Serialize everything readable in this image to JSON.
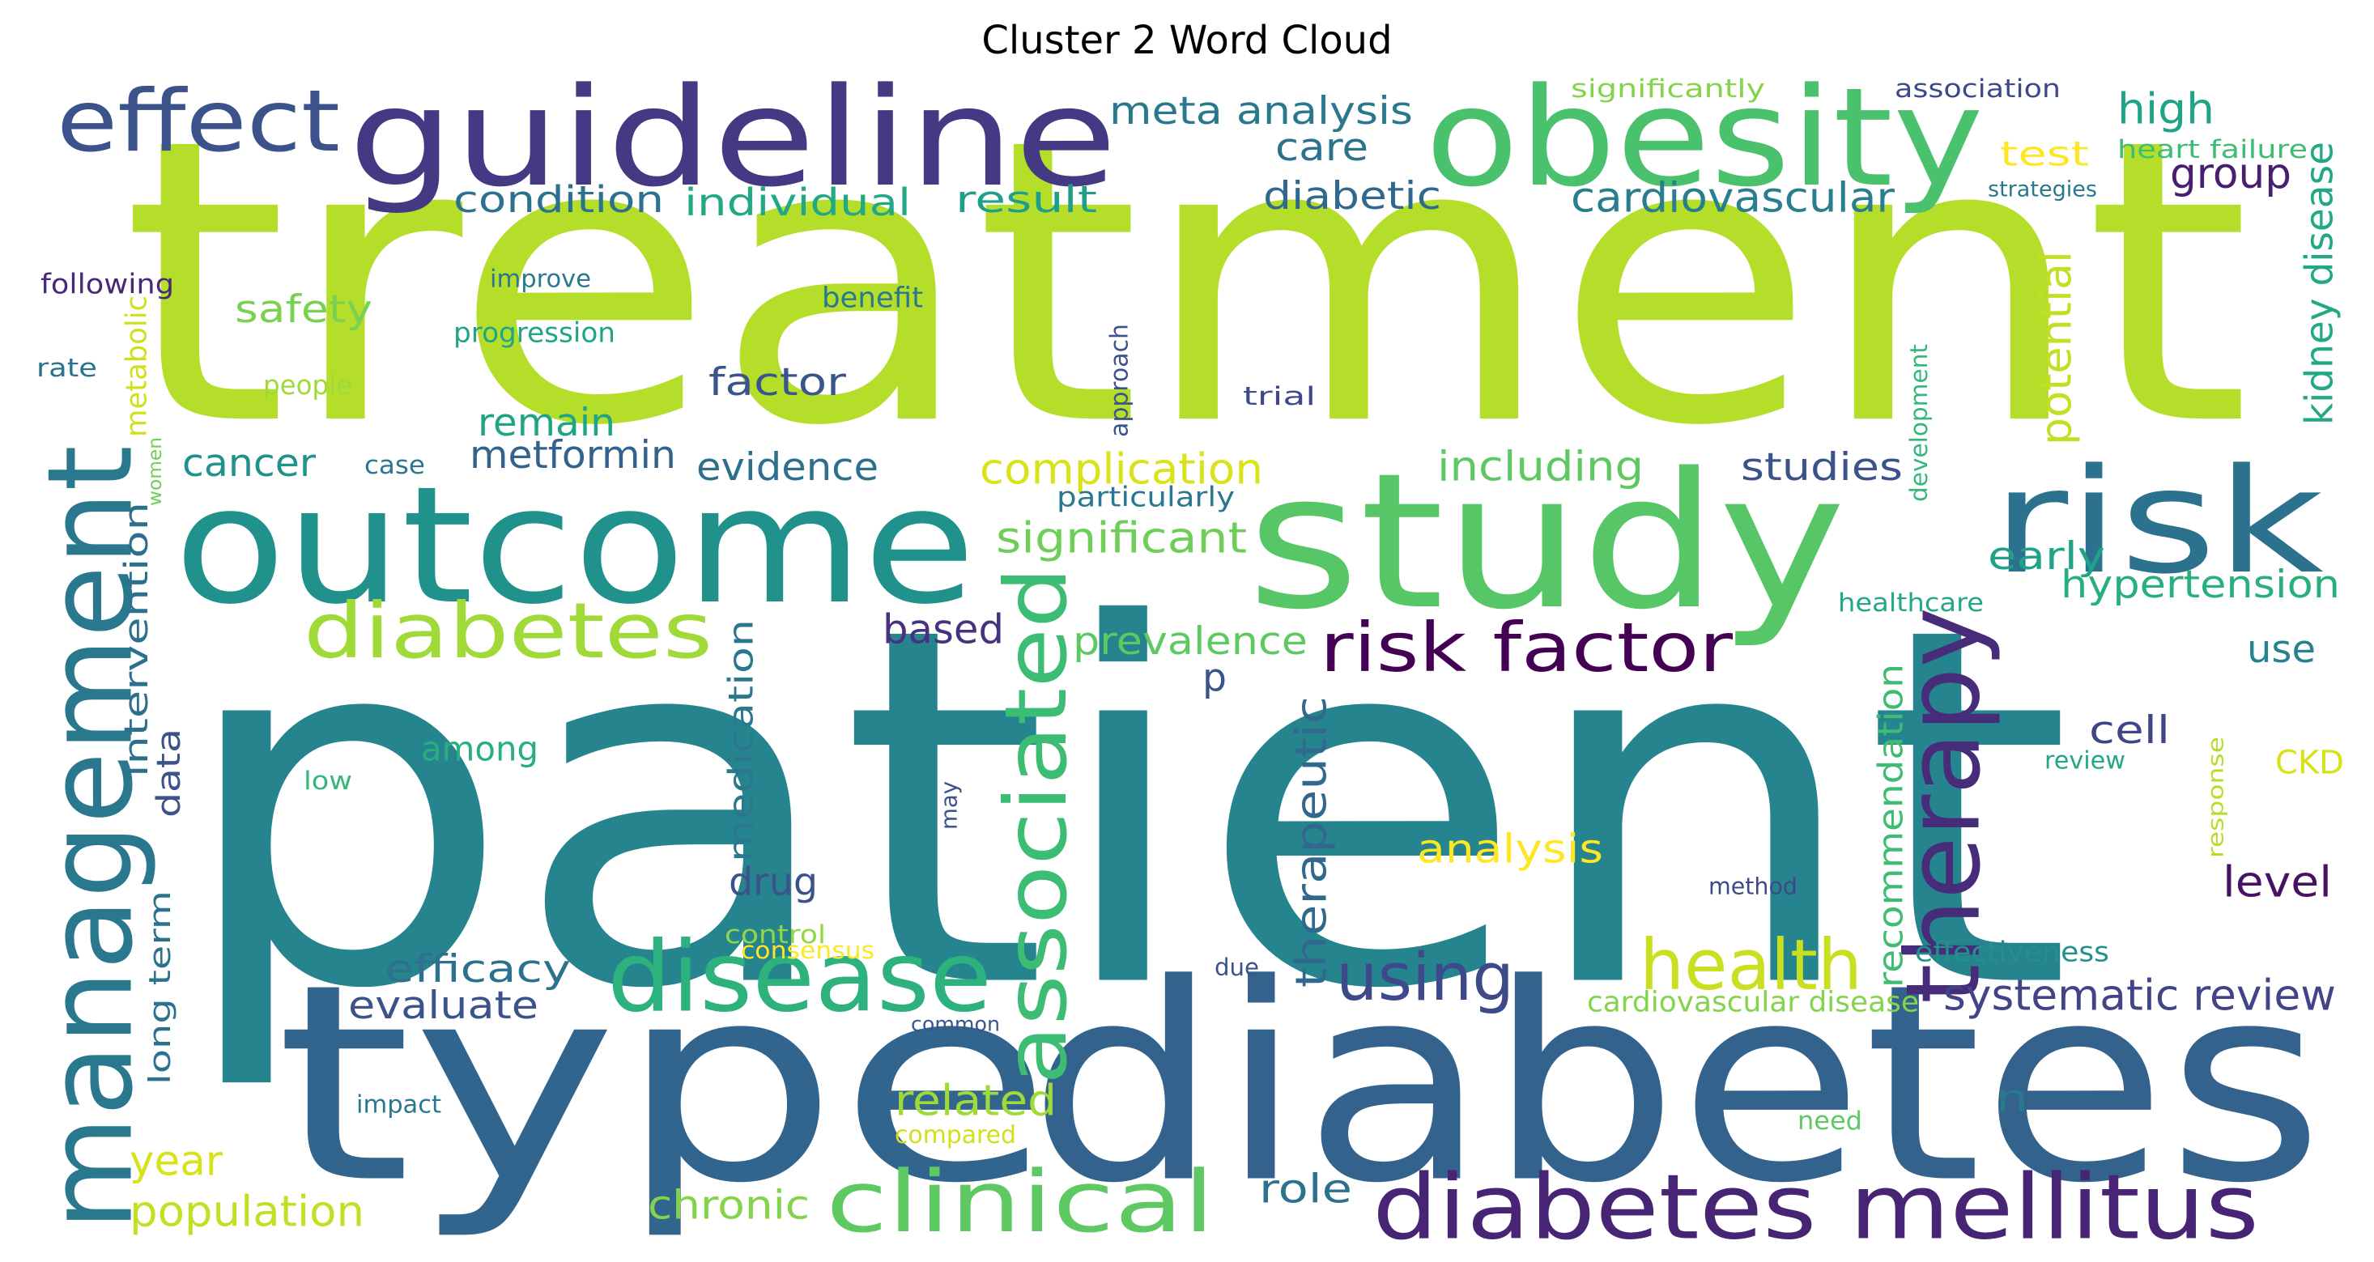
{
  "title": "Cluster 2 Word Cloud",
  "words": [
    {
      "text": "treatment",
      "color": "#b5de2b"
    },
    {
      "text": "patient",
      "color": "#25848e"
    },
    {
      "text": "type",
      "color": "#31658e"
    },
    {
      "text": "diabetes",
      "color": "#33638d"
    },
    {
      "text": "guideline",
      "color": "#443a83"
    },
    {
      "text": "obesity",
      "color": "#4ac16d"
    },
    {
      "text": "outcome",
      "color": "#21918c"
    },
    {
      "text": "study",
      "color": "#56c667"
    },
    {
      "text": "risk",
      "color": "#2c728e"
    },
    {
      "text": "management",
      "color": "#2a788e"
    },
    {
      "text": "effect",
      "color": "#3b528b"
    },
    {
      "text": "diabetes",
      "color": "#a0da39"
    },
    {
      "text": "associated",
      "color": "#3dbc74"
    },
    {
      "text": "therapy",
      "color": "#472c7a"
    },
    {
      "text": "risk factor",
      "color": "#440154"
    },
    {
      "text": "diabetes mellitus",
      "color": "#482475"
    },
    {
      "text": "clinical",
      "color": "#5ec962"
    },
    {
      "text": "disease",
      "color": "#2db27d"
    },
    {
      "text": "using",
      "color": "#3e4989"
    },
    {
      "text": "health",
      "color": "#c8e020"
    },
    {
      "text": "meta analysis",
      "color": "#2a788e"
    },
    {
      "text": "care",
      "color": "#2c728e"
    },
    {
      "text": "diabetic",
      "color": "#31688e"
    },
    {
      "text": "cardiovascular",
      "color": "#287d8e"
    },
    {
      "text": "high",
      "color": "#20a386"
    },
    {
      "text": "test",
      "color": "#fde725"
    },
    {
      "text": "group",
      "color": "#481f70"
    },
    {
      "text": "heart failure",
      "color": "#3fbc73"
    },
    {
      "text": "strategies",
      "color": "#2a788e"
    },
    {
      "text": "significantly",
      "color": "#84d44b"
    },
    {
      "text": "association",
      "color": "#3e4989"
    },
    {
      "text": "kidney disease",
      "color": "#22a884"
    },
    {
      "text": "condition",
      "color": "#2c728e"
    },
    {
      "text": "individual",
      "color": "#22a884"
    },
    {
      "text": "result",
      "color": "#1f9e89"
    },
    {
      "text": "safety",
      "color": "#7ad151"
    },
    {
      "text": "factor",
      "color": "#39558c"
    },
    {
      "text": "remain",
      "color": "#20a486"
    },
    {
      "text": "metformin",
      "color": "#33638d"
    },
    {
      "text": "cancer",
      "color": "#21918c"
    },
    {
      "text": "evidence",
      "color": "#2d708e"
    },
    {
      "text": "complication",
      "color": "#dae319"
    },
    {
      "text": "significant",
      "color": "#6ece58"
    },
    {
      "text": "including",
      "color": "#5ec962"
    },
    {
      "text": "studies",
      "color": "#3b528b"
    },
    {
      "text": "potential",
      "color": "#c2df23"
    },
    {
      "text": "early",
      "color": "#1fa287"
    },
    {
      "text": "hypertension",
      "color": "#29af7f"
    },
    {
      "text": "healthcare",
      "color": "#22a884"
    },
    {
      "text": "following",
      "color": "#482878"
    },
    {
      "text": "improve",
      "color": "#2a788e"
    },
    {
      "text": "benefit",
      "color": "#2a788e"
    },
    {
      "text": "progression",
      "color": "#20a486"
    },
    {
      "text": "rate",
      "color": "#2c728e"
    },
    {
      "text": "people",
      "color": "#a0da39"
    },
    {
      "text": "approach",
      "color": "#3b528b"
    },
    {
      "text": "trial",
      "color": "#3e4989"
    },
    {
      "text": "metabolic",
      "color": "#d0e11c"
    },
    {
      "text": "women",
      "color": "#6ece58"
    },
    {
      "text": "case",
      "color": "#2a788e"
    },
    {
      "text": "particularly",
      "color": "#2a788e"
    },
    {
      "text": "development",
      "color": "#35b779"
    },
    {
      "text": "intervention",
      "color": "#2d708e"
    },
    {
      "text": "data",
      "color": "#3b528b"
    },
    {
      "text": "based",
      "color": "#46327e"
    },
    {
      "text": "prevalence",
      "color": "#5ec962"
    },
    {
      "text": "p",
      "color": "#3b528b"
    },
    {
      "text": "medication",
      "color": "#2a788e"
    },
    {
      "text": "may",
      "color": "#3b528b"
    },
    {
      "text": "therapeutic",
      "color": "#31688e"
    },
    {
      "text": "recommendation",
      "color": "#3fbc73"
    },
    {
      "text": "among",
      "color": "#29af7f"
    },
    {
      "text": "drug",
      "color": "#3b528b"
    },
    {
      "text": "analysis",
      "color": "#fde725"
    },
    {
      "text": "use",
      "color": "#26828e"
    },
    {
      "text": "cell",
      "color": "#414487"
    },
    {
      "text": "review",
      "color": "#22a884"
    },
    {
      "text": "response",
      "color": "#b5de2b"
    },
    {
      "text": "CKD",
      "color": "#d8e219"
    },
    {
      "text": "level",
      "color": "#471164"
    },
    {
      "text": "low",
      "color": "#35b779"
    },
    {
      "text": "method",
      "color": "#3e4989"
    },
    {
      "text": "efficacy",
      "color": "#2c728e"
    },
    {
      "text": "evaluate",
      "color": "#3b528b"
    },
    {
      "text": "long term",
      "color": "#2c728e"
    },
    {
      "text": "control",
      "color": "#90d743"
    },
    {
      "text": "consensus",
      "color": "#fde725"
    },
    {
      "text": "due",
      "color": "#3b528b"
    },
    {
      "text": "effectiveness",
      "color": "#21918c"
    },
    {
      "text": "cardiovascular disease",
      "color": "#84d44b"
    },
    {
      "text": "systematic review",
      "color": "#414487"
    },
    {
      "text": "common",
      "color": "#39558c"
    },
    {
      "text": "related",
      "color": "#a0da39"
    },
    {
      "text": "n",
      "color": "#2a788e"
    },
    {
      "text": "impact",
      "color": "#2a788e"
    },
    {
      "text": "compared",
      "color": "#d0e11c"
    },
    {
      "text": "need",
      "color": "#5ec962"
    },
    {
      "text": "year",
      "color": "#d8e219"
    },
    {
      "text": "population",
      "color": "#c2df23"
    },
    {
      "text": "chronic",
      "color": "#84d44b"
    },
    {
      "text": "role",
      "color": "#2c728e"
    }
  ]
}
